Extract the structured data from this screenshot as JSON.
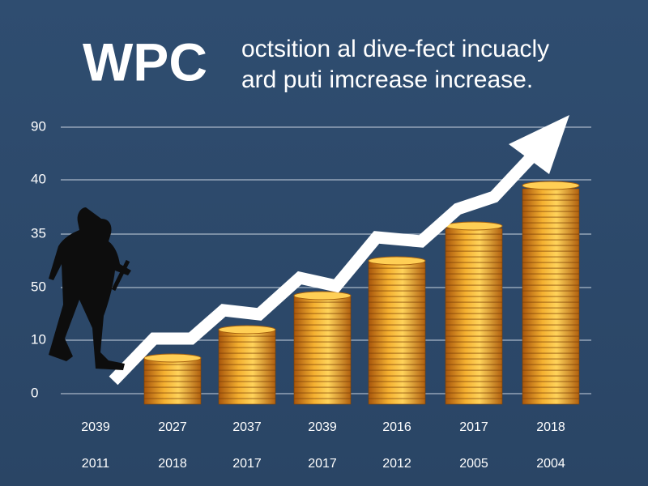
{
  "title": "WPC",
  "subtitle": [
    "octsition al dive-fect incuacly",
    "ard puti imcrease increase."
  ],
  "y_axis_labels": [
    "90",
    "40",
    "35",
    "50",
    "10",
    "0"
  ],
  "x_labels": {
    "row1": [
      "2039",
      "2027",
      "2037",
      "2039",
      "2016",
      "2017",
      "2018"
    ],
    "row2": [
      "2011",
      "2018",
      "2017",
      "2017",
      "2012",
      "2005",
      "2004"
    ]
  }
}
